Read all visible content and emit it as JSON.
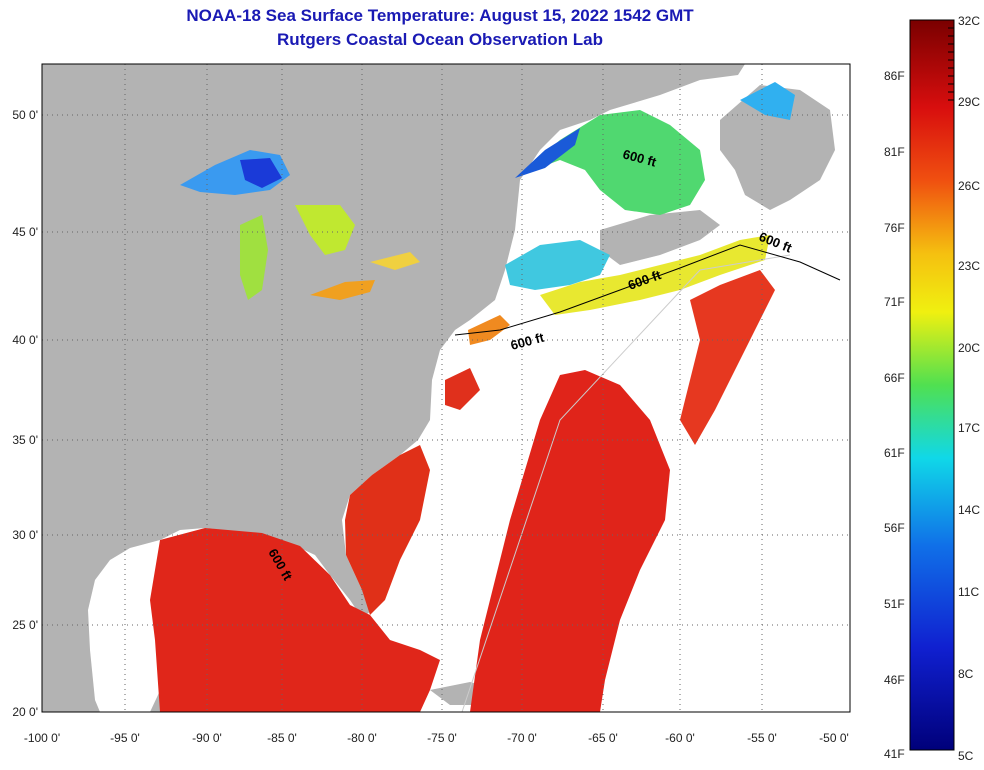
{
  "header": {
    "title": "NOAA-18 Sea Surface Temperature:  August 15, 2022 1542 GMT",
    "subtitle": "Rutgers Coastal Ocean Observation Lab"
  },
  "axes": {
    "lat_labels": [
      "50 0'",
      "45 0'",
      "40 0'",
      "35 0'",
      "30 0'",
      "25 0'",
      "20 0'"
    ],
    "lon_labels": [
      "-100 0'",
      "-95 0'",
      "-90 0'",
      "-85 0'",
      "-80 0'",
      "-75 0'",
      "-70 0'",
      "-65 0'",
      "-60 0'",
      "-55 0'",
      "-50 0'"
    ]
  },
  "isobath_labels": [
    "600 ft",
    "600 ft",
    "600 ft",
    "600 ft",
    "600 ft"
  ],
  "colorbar": {
    "fahrenheit_labels": [
      "86F",
      "81F",
      "76F",
      "71F",
      "66F",
      "61F",
      "56F",
      "51F",
      "46F",
      "41F"
    ],
    "celsius_labels": [
      "32C",
      "29C",
      "26C",
      "23C",
      "20C",
      "17C",
      "14C",
      "11C",
      "8C",
      "5C"
    ],
    "colors": {
      "top": "#7a0000",
      "red": "#e01010",
      "orange": "#f07010",
      "yellow": "#f0f010",
      "green": "#40e060",
      "cyan": "#10d0f0",
      "blue": "#1040e0",
      "bottom": "#00007a"
    }
  },
  "colors": {
    "land": "#b3b3b3",
    "no_data": "#ffffff",
    "warm_sst": "#e0261a"
  }
}
